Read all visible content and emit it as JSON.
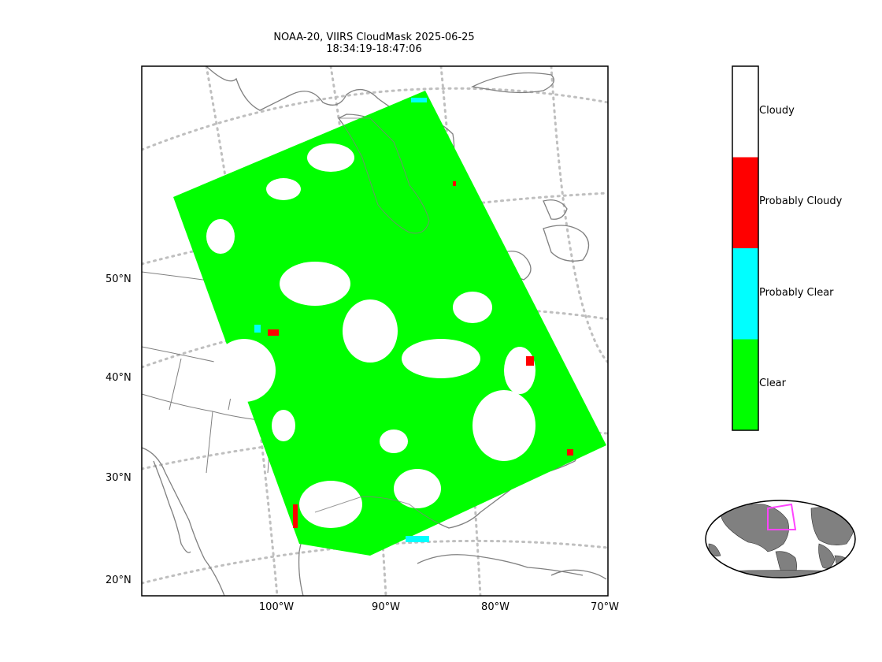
{
  "title": {
    "line1": "NOAA-20, VIIRS CloudMask 2025-06-25",
    "line2": "18:34:19-18:47:06"
  },
  "axes": {
    "lat_ticks": [
      "50°N",
      "40°N",
      "30°N",
      "20°N"
    ],
    "lon_ticks": [
      "100°W",
      "90°W",
      "80°W",
      "70°W"
    ]
  },
  "colorbar": {
    "categories": [
      {
        "label": "Cloudy",
        "color": "#ffffff"
      },
      {
        "label": "Probably Cloudy",
        "color": "#ff0000"
      },
      {
        "label": "Probably Clear",
        "color": "#00ffff"
      },
      {
        "label": "Clear",
        "color": "#00ff00"
      }
    ]
  },
  "colors": {
    "coast": "#808080",
    "graticule": "#bfbfbf",
    "land_inset": "#808080",
    "swath_box": "#ff44ff"
  }
}
